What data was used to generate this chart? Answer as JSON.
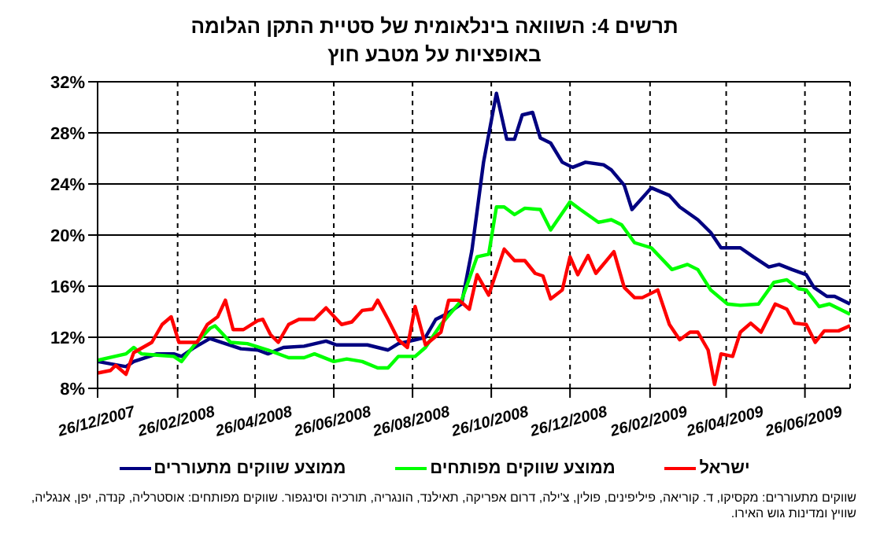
{
  "chart_data": {
    "type": "line",
    "title": "תרשים 4: השוואה בינלאומית של סטיית התקן הגלומה באופציות על מטבע חוץ",
    "xlim": [
      "2007-12-26",
      "2009-07-31"
    ],
    "xticks": [
      {
        "value": "2007-12-26",
        "label": "26/12/2007"
      },
      {
        "value": "2008-02-26",
        "label": "26/02/2008"
      },
      {
        "value": "2008-04-26",
        "label": "26/04/2008"
      },
      {
        "value": "2008-06-26",
        "label": "26/06/2008"
      },
      {
        "value": "2008-08-26",
        "label": "26/08/2008"
      },
      {
        "value": "2008-10-26",
        "label": "26/10/2008"
      },
      {
        "value": "2008-12-26",
        "label": "26/12/2008"
      },
      {
        "value": "2009-02-26",
        "label": "26/02/2009"
      },
      {
        "value": "2009-04-26",
        "label": "26/04/2009"
      },
      {
        "value": "2009-06-26",
        "label": "26/06/2009"
      }
    ],
    "ylim": [
      8,
      32
    ],
    "yticks": [
      {
        "value": 8,
        "label": "8%"
      },
      {
        "value": 12,
        "label": "12%"
      },
      {
        "value": 16,
        "label": "16%"
      },
      {
        "value": 20,
        "label": "20%"
      },
      {
        "value": 24,
        "label": "24%"
      },
      {
        "value": 28,
        "label": "28%"
      },
      {
        "value": 32,
        "label": "32%"
      }
    ],
    "grid": true,
    "legend": "bottom",
    "marker": "none",
    "line_style": "solid",
    "series": [
      {
        "name": "ממוצע שווקים מתעוררים",
        "color": "#000080",
        "x": [
          "2007-12-26",
          "2008-01-17",
          "2008-01-23",
          "2008-02-10",
          "2008-02-23",
          "2008-02-29",
          "2008-03-10",
          "2008-03-22",
          "2008-04-03",
          "2008-04-15",
          "2008-04-28",
          "2008-05-06",
          "2008-05-18",
          "2008-06-03",
          "2008-06-20",
          "2008-06-28",
          "2008-07-22",
          "2008-08-07",
          "2008-08-15",
          "2008-08-28",
          "2008-09-05",
          "2008-09-13",
          "2008-09-21",
          "2008-10-03",
          "2008-10-11",
          "2008-10-20",
          "2008-10-30",
          "2008-11-07",
          "2008-11-13",
          "2008-11-19",
          "2008-11-27",
          "2008-12-03",
          "2008-12-11",
          "2008-12-20",
          "2008-12-28",
          "2009-01-07",
          "2009-01-21",
          "2009-01-27",
          "2009-02-06",
          "2009-02-12",
          "2009-02-27",
          "2009-03-13",
          "2009-03-21",
          "2009-04-04",
          "2009-04-14",
          "2009-04-22",
          "2009-05-07",
          "2009-05-17",
          "2009-05-29",
          "2009-06-06",
          "2009-06-16",
          "2009-06-27",
          "2009-07-03",
          "2009-07-13",
          "2009-07-19",
          "2009-07-31"
        ],
        "values": [
          10.1,
          9.7,
          10.1,
          10.7,
          10.7,
          10.5,
          11.2,
          11.9,
          11.5,
          11.1,
          11.0,
          10.7,
          11.2,
          11.3,
          11.7,
          11.4,
          11.4,
          11.0,
          11.5,
          11.8,
          12.0,
          13.4,
          13.8,
          14.6,
          18.8,
          25.7,
          31.1,
          27.5,
          27.5,
          29.4,
          29.6,
          27.6,
          27.2,
          25.7,
          25.3,
          25.7,
          25.5,
          25.1,
          23.9,
          22.0,
          23.7,
          23.1,
          22.2,
          21.2,
          20.2,
          19.0,
          19.0,
          18.3,
          17.5,
          17.7,
          17.3,
          16.9,
          15.9,
          15.2,
          15.2,
          14.6
        ]
      },
      {
        "name": "ממוצע שווקים מפותחים",
        "color": "#00ff00",
        "x": [
          "2007-12-26",
          "2008-01-17",
          "2008-01-23",
          "2008-01-29",
          "2008-02-10",
          "2008-02-23",
          "2008-02-29",
          "2008-03-10",
          "2008-03-22",
          "2008-03-26",
          "2008-04-07",
          "2008-04-20",
          "2008-05-06",
          "2008-05-22",
          "2008-06-03",
          "2008-06-11",
          "2008-06-26",
          "2008-07-06",
          "2008-07-18",
          "2008-07-30",
          "2008-08-07",
          "2008-08-15",
          "2008-08-28",
          "2008-09-05",
          "2008-09-17",
          "2008-10-03",
          "2008-10-15",
          "2008-10-24",
          "2008-10-30",
          "2008-11-05",
          "2008-11-13",
          "2008-11-21",
          "2008-12-03",
          "2008-12-11",
          "2008-12-26",
          "2009-01-03",
          "2009-01-17",
          "2009-01-27",
          "2009-02-04",
          "2009-02-14",
          "2009-02-27",
          "2009-03-15",
          "2009-03-27",
          "2009-04-04",
          "2009-04-14",
          "2009-04-27",
          "2009-05-07",
          "2009-05-21",
          "2009-06-02",
          "2009-06-12",
          "2009-06-21",
          "2009-06-27",
          "2009-07-07",
          "2009-07-15",
          "2009-07-31"
        ],
        "values": [
          10.2,
          10.7,
          11.2,
          10.7,
          10.6,
          10.5,
          10.1,
          11.4,
          12.7,
          12.9,
          11.6,
          11.5,
          11.0,
          10.4,
          10.4,
          10.7,
          10.1,
          10.3,
          10.1,
          9.6,
          9.6,
          10.5,
          10.5,
          11.2,
          13.0,
          14.9,
          18.3,
          18.5,
          22.2,
          22.2,
          21.6,
          22.1,
          22.0,
          20.4,
          22.6,
          22.0,
          21.0,
          21.2,
          20.8,
          19.4,
          19.0,
          17.3,
          17.7,
          17.3,
          15.7,
          14.6,
          14.5,
          14.6,
          16.3,
          16.5,
          15.8,
          15.7,
          14.4,
          14.6,
          13.8
        ]
      },
      {
        "name": "ישראל",
        "color": "#ff0000",
        "x": [
          "2007-12-26",
          "2008-01-05",
          "2008-01-09",
          "2008-01-17",
          "2008-01-23",
          "2008-02-06",
          "2008-02-14",
          "2008-02-21",
          "2008-02-27",
          "2008-03-12",
          "2008-03-20",
          "2008-03-28",
          "2008-04-03",
          "2008-04-09",
          "2008-04-17",
          "2008-04-28",
          "2008-05-02",
          "2008-05-08",
          "2008-05-14",
          "2008-05-22",
          "2008-05-30",
          "2008-06-11",
          "2008-06-20",
          "2008-07-02",
          "2008-07-10",
          "2008-07-18",
          "2008-07-26",
          "2008-07-30",
          "2008-08-07",
          "2008-08-15",
          "2008-08-22",
          "2008-08-28",
          "2008-09-05",
          "2008-09-17",
          "2008-09-23",
          "2008-10-01",
          "2008-10-09",
          "2008-10-15",
          "2008-10-24",
          "2008-11-05",
          "2008-11-13",
          "2008-11-21",
          "2008-11-29",
          "2008-12-05",
          "2008-12-11",
          "2008-12-20",
          "2008-12-26",
          "2009-01-01",
          "2009-01-09",
          "2009-01-15",
          "2009-01-29",
          "2009-02-06",
          "2009-02-14",
          "2009-02-20",
          "2009-03-04",
          "2009-03-13",
          "2009-03-21",
          "2009-03-29",
          "2009-04-04",
          "2009-04-12",
          "2009-04-17",
          "2009-04-22",
          "2009-05-01",
          "2009-05-07",
          "2009-05-15",
          "2009-05-23",
          "2009-06-03",
          "2009-06-12",
          "2009-06-18",
          "2009-06-27",
          "2009-07-04",
          "2009-07-11",
          "2009-07-22",
          "2009-07-31"
        ],
        "values": [
          9.2,
          9.4,
          9.8,
          9.1,
          10.8,
          11.6,
          13.0,
          13.6,
          11.6,
          11.6,
          13.0,
          13.6,
          14.9,
          12.6,
          12.6,
          13.3,
          13.4,
          12.2,
          11.6,
          13.0,
          13.4,
          13.4,
          14.3,
          13.0,
          13.2,
          14.1,
          14.2,
          14.9,
          13.4,
          11.8,
          11.2,
          14.4,
          11.4,
          12.4,
          14.9,
          14.9,
          14.2,
          16.9,
          15.3,
          18.9,
          18.0,
          18.0,
          17.0,
          16.8,
          15.0,
          15.7,
          18.3,
          16.9,
          18.4,
          17.0,
          18.7,
          15.9,
          15.1,
          15.1,
          15.7,
          13.0,
          11.8,
          12.4,
          12.4,
          11.0,
          8.3,
          10.7,
          10.5,
          12.4,
          13.1,
          12.4,
          14.6,
          14.2,
          13.1,
          13.0,
          11.6,
          12.5,
          12.5,
          12.9
        ]
      }
    ],
    "annotations": [
      "שווקים מתעוררים: מקסיקו, ד. קוריאה, פיליפינים, פולין, צ'ילה, דרום אפריקה, תאילנד, הונגריה, תורכיה וסינגפור. שווקים מפותחים: אוסטרליה, קנדה, יפן, אנגליה, שוויץ ומדינות גוש האירו."
    ]
  }
}
